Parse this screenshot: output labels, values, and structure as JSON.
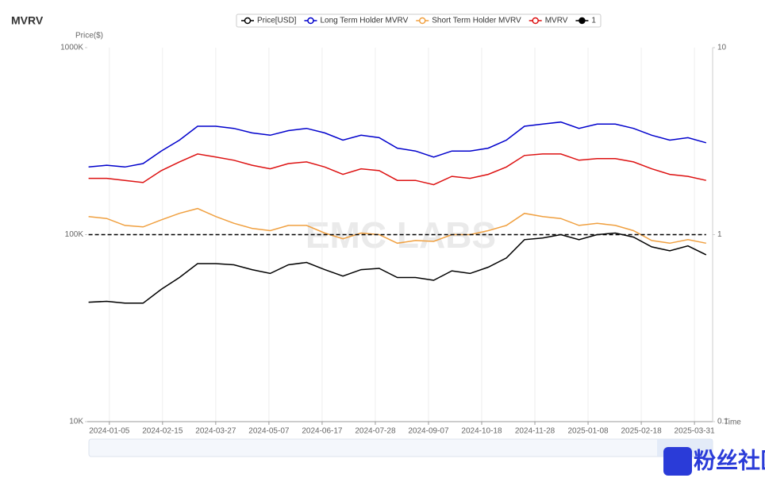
{
  "chart_data": {
    "type": "line",
    "title": "MVRV",
    "y_label": "Price($)",
    "x_label": "Time",
    "watermark": "EMC LABS",
    "badge": "粉丝社区",
    "x": [
      "2023-12-20",
      "2024-01-03",
      "2024-01-17",
      "2024-01-31",
      "2024-02-14",
      "2024-02-28",
      "2024-03-13",
      "2024-03-27",
      "2024-04-10",
      "2024-04-24",
      "2024-05-08",
      "2024-05-22",
      "2024-06-05",
      "2024-06-19",
      "2024-07-03",
      "2024-07-17",
      "2024-07-31",
      "2024-08-14",
      "2024-08-28",
      "2024-09-11",
      "2024-09-25",
      "2024-10-09",
      "2024-10-23",
      "2024-11-06",
      "2024-11-20",
      "2024-12-04",
      "2024-12-18",
      "2025-01-01",
      "2025-01-15",
      "2025-01-29",
      "2025-02-12",
      "2025-02-26",
      "2025-03-12",
      "2025-03-26",
      "2025-04-09"
    ],
    "xlim": [
      "2023-12-19",
      "2025-04-14"
    ],
    "xticks": [
      "2024-01-05",
      "2024-02-15",
      "2024-03-27",
      "2024-05-07",
      "2024-06-17",
      "2024-07-28",
      "2024-09-07",
      "2024-10-18",
      "2024-11-28",
      "2025-01-08",
      "2025-02-18",
      "2025-03-31"
    ],
    "log_scale": true,
    "grid": true,
    "ylim": [
      10000,
      1000000
    ],
    "yticks": [
      {
        "value": 10000,
        "label": "10K"
      },
      {
        "value": 100000,
        "label": "100K"
      },
      {
        "value": 1000000,
        "label": "1000K"
      }
    ],
    "y2lim": [
      0.1,
      10
    ],
    "y2ticks": [
      0.1,
      1,
      10
    ],
    "series": [
      {
        "name": "Price[USD]",
        "color": "#000000",
        "axis": "y",
        "values": [
          43500,
          44000,
          43000,
          43000,
          51000,
          59000,
          70000,
          70000,
          69000,
          65000,
          62000,
          69000,
          71000,
          65000,
          60000,
          65000,
          66000,
          59000,
          59000,
          57000,
          64000,
          62000,
          67000,
          75000,
          94000,
          96000,
          100000,
          94000,
          100000,
          102000,
          97000,
          86000,
          82000,
          87000,
          78000
        ]
      },
      {
        "name": "Long Term Holder MVRV",
        "color": "#0000cc",
        "axis": "y2",
        "values": [
          2.3,
          2.35,
          2.3,
          2.4,
          2.8,
          3.2,
          3.8,
          3.8,
          3.7,
          3.5,
          3.4,
          3.6,
          3.7,
          3.5,
          3.2,
          3.4,
          3.3,
          2.9,
          2.8,
          2.6,
          2.8,
          2.8,
          2.9,
          3.2,
          3.8,
          3.9,
          4.0,
          3.7,
          3.9,
          3.9,
          3.7,
          3.4,
          3.2,
          3.3,
          3.1
        ]
      },
      {
        "name": "Short Term Holder MVRV",
        "color": "#f0a040",
        "axis": "y2",
        "values": [
          1.25,
          1.22,
          1.12,
          1.1,
          1.2,
          1.3,
          1.38,
          1.25,
          1.15,
          1.08,
          1.05,
          1.12,
          1.12,
          1.02,
          0.95,
          1.02,
          1.0,
          0.9,
          0.93,
          0.92,
          1.0,
          1.0,
          1.05,
          1.12,
          1.3,
          1.25,
          1.22,
          1.12,
          1.15,
          1.12,
          1.05,
          0.93,
          0.9,
          0.94,
          0.9
        ]
      },
      {
        "name": "MVRV",
        "color": "#dd1111",
        "axis": "y2",
        "values": [
          2.0,
          2.0,
          1.95,
          1.9,
          2.2,
          2.45,
          2.7,
          2.6,
          2.5,
          2.35,
          2.25,
          2.4,
          2.45,
          2.3,
          2.1,
          2.25,
          2.2,
          1.95,
          1.95,
          1.85,
          2.05,
          2.0,
          2.1,
          2.3,
          2.65,
          2.7,
          2.7,
          2.5,
          2.55,
          2.55,
          2.45,
          2.25,
          2.1,
          2.05,
          1.95
        ]
      },
      {
        "name": "1",
        "color": "#000000",
        "axis": "y2",
        "dashed": true,
        "values": [
          1,
          1,
          1,
          1,
          1,
          1,
          1,
          1,
          1,
          1,
          1,
          1,
          1,
          1,
          1,
          1,
          1,
          1,
          1,
          1,
          1,
          1,
          1,
          1,
          1,
          1,
          1,
          1,
          1,
          1,
          1,
          1,
          1,
          1,
          1
        ]
      }
    ]
  }
}
